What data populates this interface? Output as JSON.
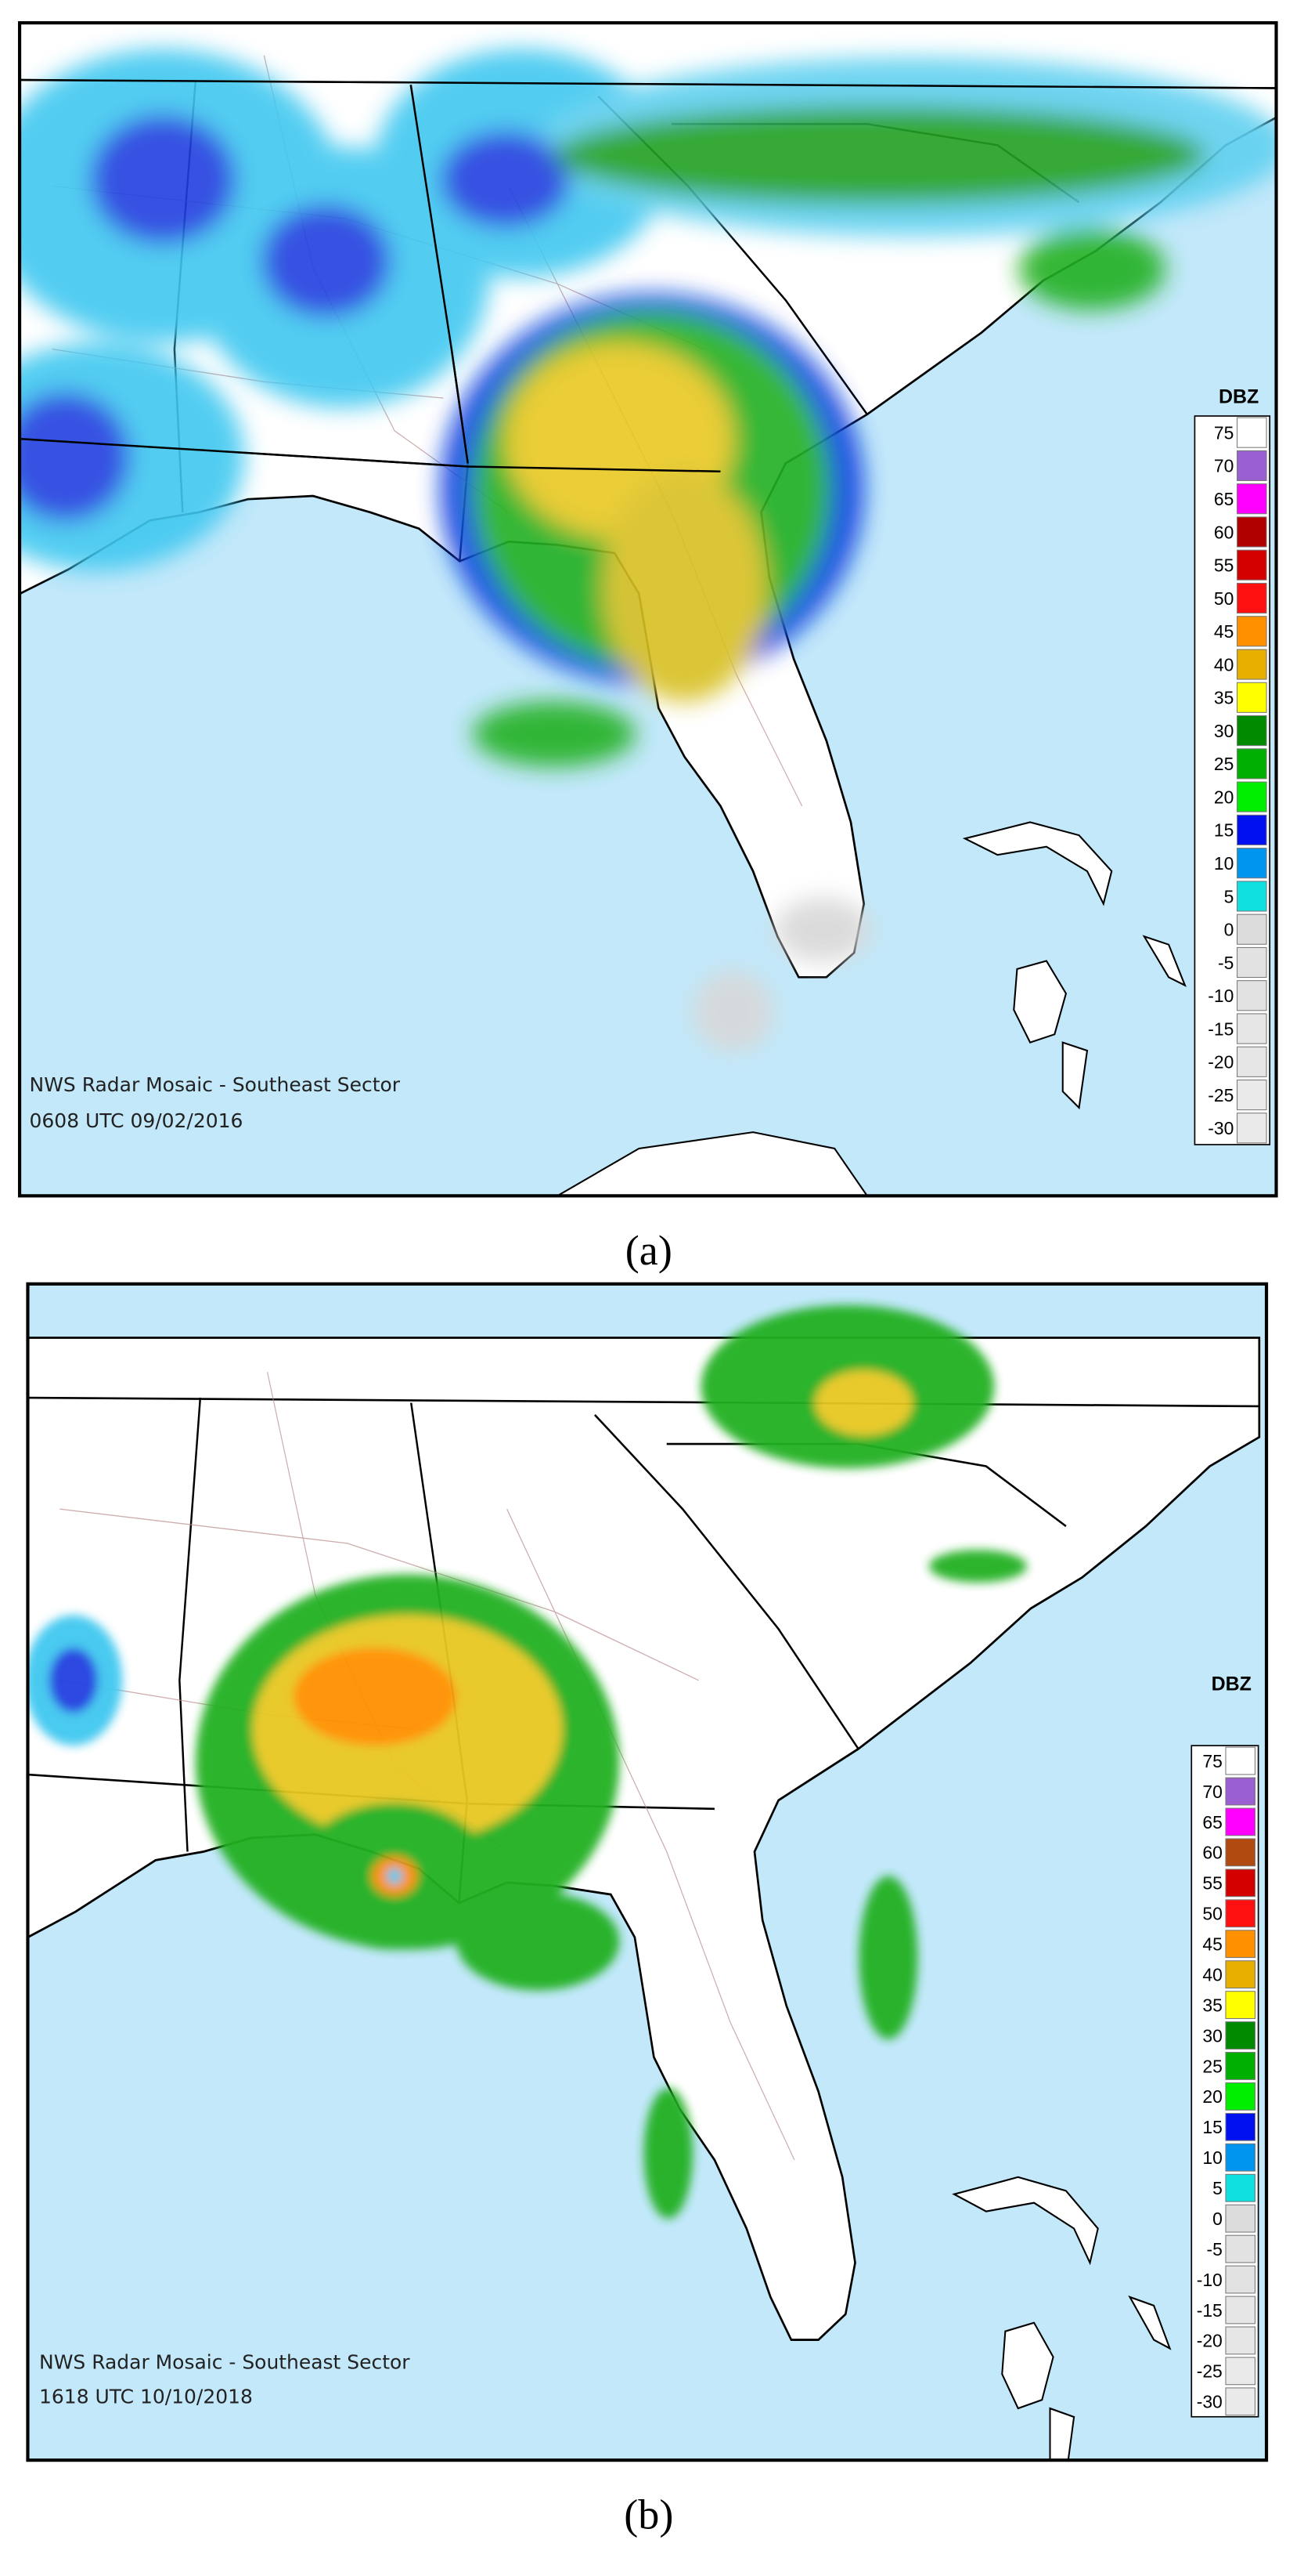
{
  "panels": [
    {
      "title": "NWS Radar Mosaic - Southeast Sector",
      "timestamp": "0608 UTC 09/02/2016",
      "caption": "(a)",
      "legend": {
        "title": "DBZ",
        "levels": [
          75,
          70,
          65,
          60,
          55,
          50,
          45,
          40,
          35,
          30,
          25,
          20,
          15,
          10,
          5,
          0,
          -5,
          -10,
          -15,
          -20,
          -25,
          -30
        ],
        "colors": [
          "#ffffff",
          "#9a5fd0",
          "#ff00ff",
          "#b00000",
          "#d40000",
          "#ff1010",
          "#ff9000",
          "#e7b000",
          "#ffff00",
          "#008a00",
          "#00b000",
          "#00ee00",
          "#0010f0",
          "#0096f0",
          "#10e0e0",
          "#dcdcdc",
          "#e2e2e2",
          "#e2e2e2",
          "#e6e6e6",
          "#e6e6e6",
          "#eaeaea",
          "#eaeaea"
        ]
      }
    },
    {
      "title": "NWS Radar Mosaic - Southeast Sector",
      "timestamp": "1618 UTC 10/10/2018",
      "caption": "(b)",
      "legend": {
        "title": "DBZ",
        "levels": [
          75,
          70,
          65,
          60,
          55,
          50,
          45,
          40,
          35,
          30,
          25,
          20,
          15,
          10,
          5,
          0,
          -5,
          -10,
          -15,
          -20,
          -25,
          -30
        ],
        "colors": [
          "#ffffff",
          "#9a5fd0",
          "#ff00ff",
          "#b04a10",
          "#d40000",
          "#ff1010",
          "#ff9000",
          "#e7b000",
          "#ffff00",
          "#008a00",
          "#00b000",
          "#00ee00",
          "#0010f0",
          "#0096f0",
          "#10e0e0",
          "#dcdcdc",
          "#e2e2e2",
          "#e2e2e2",
          "#e6e6e6",
          "#e6e6e6",
          "#eaeaea",
          "#eaeaea"
        ]
      }
    }
  ]
}
